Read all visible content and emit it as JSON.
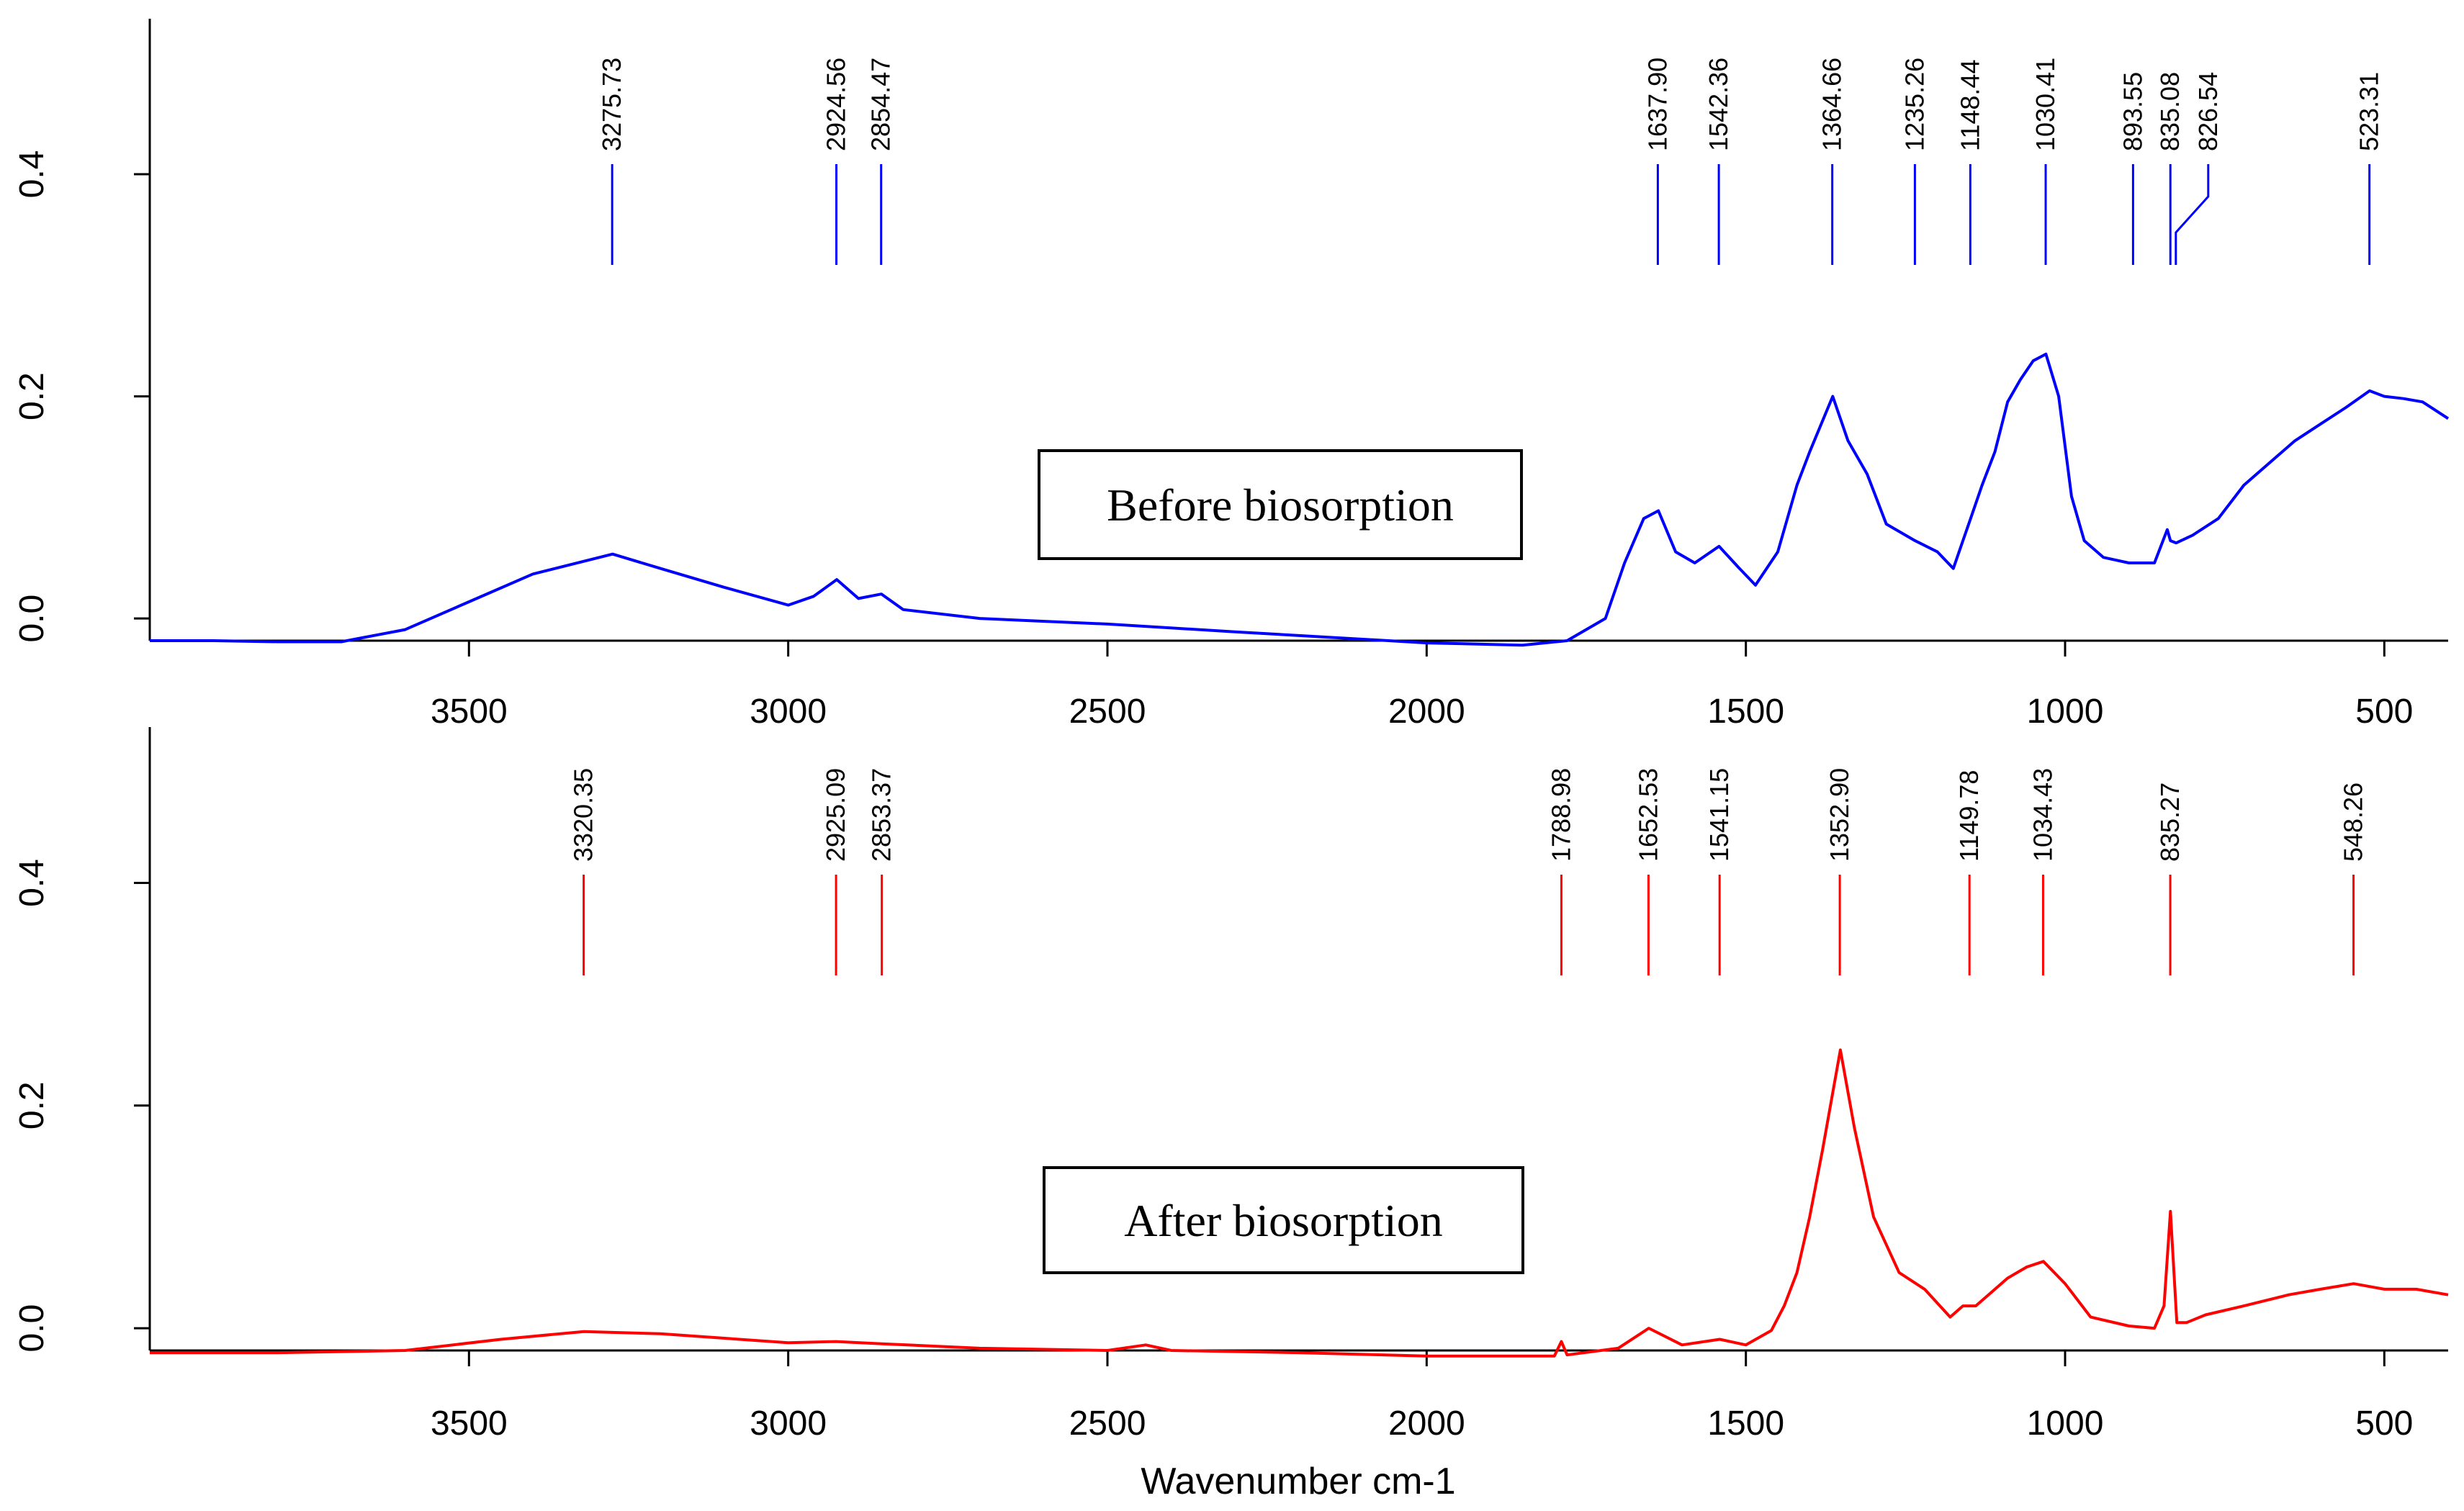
{
  "chart_data": [
    {
      "type": "line",
      "panel": "top",
      "color": "#0000ff",
      "box_label": "Before biosorption",
      "xlim": [
        4000,
        400
      ],
      "ylim": [
        -0.02,
        0.54
      ],
      "x_ticks": [
        3500,
        3000,
        2500,
        2000,
        1500,
        1000,
        500
      ],
      "y_ticks": [
        0.0,
        0.2,
        0.4
      ],
      "y_tick_labels": [
        "0.0",
        "0.2",
        "0.4"
      ],
      "x": [
        4000,
        3900,
        3800,
        3700,
        3600,
        3500,
        3400,
        3275,
        3200,
        3100,
        3000,
        2960,
        2924,
        2890,
        2854,
        2820,
        2700,
        2500,
        2300,
        2000,
        1850,
        1780,
        1720,
        1690,
        1660,
        1637,
        1610,
        1580,
        1542,
        1510,
        1485,
        1450,
        1420,
        1400,
        1364,
        1340,
        1310,
        1280,
        1235,
        1200,
        1175,
        1160,
        1148,
        1130,
        1110,
        1090,
        1070,
        1050,
        1030,
        1010,
        990,
        970,
        940,
        900,
        860,
        840,
        835,
        826,
        800,
        760,
        720,
        680,
        640,
        600,
        560,
        523,
        500,
        470,
        440,
        400
      ],
      "values": [
        -0.02,
        -0.02,
        -0.021,
        -0.021,
        -0.01,
        0.015,
        0.04,
        0.058,
        0.045,
        0.028,
        0.012,
        0.02,
        0.035,
        0.018,
        0.022,
        0.008,
        0.0,
        -0.005,
        -0.012,
        -0.022,
        -0.024,
        -0.02,
        0.0,
        0.05,
        0.09,
        0.097,
        0.06,
        0.05,
        0.065,
        0.045,
        0.03,
        0.06,
        0.12,
        0.15,
        0.2,
        0.16,
        0.13,
        0.085,
        0.07,
        0.06,
        0.045,
        0.07,
        0.09,
        0.12,
        0.15,
        0.195,
        0.215,
        0.232,
        0.238,
        0.2,
        0.11,
        0.07,
        0.055,
        0.05,
        0.05,
        0.08,
        0.07,
        0.068,
        0.075,
        0.09,
        0.12,
        0.14,
        0.16,
        0.175,
        0.19,
        0.205,
        0.2,
        0.198,
        0.195,
        0.18
      ],
      "peaks": [
        {
          "label": "3275.73",
          "x": 3275.73
        },
        {
          "label": "2924.56",
          "x": 2924.56
        },
        {
          "label": "2854.47",
          "x": 2854.47
        },
        {
          "label": "1637.90",
          "x": 1637.9
        },
        {
          "label": "1542.36",
          "x": 1542.36
        },
        {
          "label": "1364.66",
          "x": 1364.66
        },
        {
          "label": "1235.26",
          "x": 1235.26
        },
        {
          "label": "1148.44",
          "x": 1148.44
        },
        {
          "label": "1030.41",
          "x": 1030.41
        },
        {
          "label": "893.55",
          "x": 893.55
        },
        {
          "label": "835.08",
          "x": 835.08
        },
        {
          "label": "826.54",
          "x": 826.54
        },
        {
          "label": "523.31",
          "x": 523.31
        }
      ]
    },
    {
      "type": "line",
      "panel": "bottom",
      "color": "#ff0000",
      "box_label": "After biosorption",
      "xlabel": "Wavenumber cm-1",
      "xlim": [
        4000,
        400
      ],
      "ylim": [
        -0.02,
        0.54
      ],
      "x_ticks": [
        3500,
        3000,
        2500,
        2000,
        1500,
        1000,
        500
      ],
      "y_ticks": [
        0.0,
        0.2,
        0.4
      ],
      "y_tick_labels": [
        "0.0",
        "0.2",
        "0.4"
      ],
      "x": [
        4000,
        3800,
        3600,
        3450,
        3320,
        3200,
        3000,
        2925,
        2853,
        2700,
        2500,
        2440,
        2400,
        2200,
        2000,
        1800,
        1789,
        1780,
        1700,
        1652,
        1600,
        1541,
        1500,
        1460,
        1440,
        1420,
        1400,
        1380,
        1352,
        1330,
        1300,
        1260,
        1220,
        1180,
        1160,
        1140,
        1120,
        1090,
        1060,
        1034,
        1000,
        960,
        900,
        860,
        845,
        835,
        825,
        810,
        780,
        720,
        650,
        600,
        548,
        500,
        450,
        400
      ],
      "values": [
        -0.022,
        -0.022,
        -0.02,
        -0.01,
        -0.003,
        -0.005,
        -0.013,
        -0.012,
        -0.014,
        -0.018,
        -0.02,
        -0.015,
        -0.02,
        -0.022,
        -0.025,
        -0.025,
        -0.012,
        -0.024,
        -0.018,
        0.0,
        -0.015,
        -0.01,
        -0.015,
        -0.002,
        0.02,
        0.05,
        0.1,
        0.16,
        0.25,
        0.18,
        0.1,
        0.05,
        0.035,
        0.01,
        0.02,
        0.02,
        0.03,
        0.045,
        0.055,
        0.06,
        0.04,
        0.01,
        0.002,
        0.0,
        0.02,
        0.105,
        0.005,
        0.005,
        0.012,
        0.02,
        0.03,
        0.035,
        0.04,
        0.035,
        0.035,
        0.03
      ],
      "peaks": [
        {
          "label": "3320.35",
          "x": 3320.35
        },
        {
          "label": "2925.09",
          "x": 2925.09
        },
        {
          "label": "2853.37",
          "x": 2853.37
        },
        {
          "label": "1788.98",
          "x": 1788.98
        },
        {
          "label": "1652.53",
          "x": 1652.53
        },
        {
          "label": "1541.15",
          "x": 1541.15
        },
        {
          "label": "1352.90",
          "x": 1352.9
        },
        {
          "label": "1149.78",
          "x": 1149.78
        },
        {
          "label": "1034.43",
          "x": 1034.43
        },
        {
          "label": "835.27",
          "x": 835.27
        },
        {
          "label": "548.26",
          "x": 548.26
        }
      ]
    }
  ]
}
